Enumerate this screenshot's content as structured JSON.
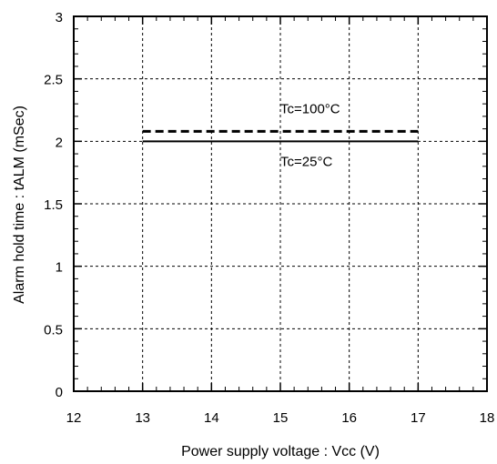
{
  "chart_data": {
    "type": "line",
    "xlabel": "Power supply voltage : Vcc (V)",
    "ylabel": "Alarm hold time : tALM (mSec)",
    "xlim": [
      12,
      18
    ],
    "ylim": [
      0,
      3
    ],
    "xticks": [
      "12",
      "13",
      "14",
      "15",
      "16",
      "17",
      "18"
    ],
    "yticks": [
      "0",
      "0.5",
      "1",
      "1.5",
      "2",
      "2.5",
      "3"
    ],
    "grid": true,
    "series": [
      {
        "name": "Tc=100°C",
        "style": "dashed",
        "x": [
          13,
          17
        ],
        "y": [
          2.08,
          2.08
        ]
      },
      {
        "name": "Tc=25°C",
        "style": "solid",
        "x": [
          13,
          17
        ],
        "y": [
          2.0,
          2.0
        ]
      }
    ],
    "annotations": [
      {
        "text": "Tc=100°C",
        "x": 15,
        "y": 2.26
      },
      {
        "text": "Tc=25°C",
        "x": 15,
        "y": 1.84
      }
    ]
  }
}
